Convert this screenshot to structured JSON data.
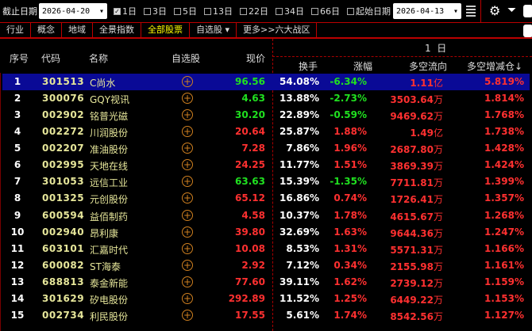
{
  "toolbar": {
    "end_date_label": "截止日期",
    "end_date": "2026-04-20",
    "periods": [
      {
        "label": "1日",
        "checked": true
      },
      {
        "label": "3日",
        "checked": false
      },
      {
        "label": "5日",
        "checked": false
      },
      {
        "label": "13日",
        "checked": false
      },
      {
        "label": "22日",
        "checked": false
      },
      {
        "label": "34日",
        "checked": false
      },
      {
        "label": "66日",
        "checked": false
      },
      {
        "label": "起始日期",
        "checked": false
      }
    ],
    "start_date": "2026-04-13"
  },
  "nav": {
    "items": [
      "行业",
      "概念",
      "地域",
      "全景指数",
      "全部股票",
      "自选股 ▾",
      "更多>>六大战区"
    ],
    "active": 4
  },
  "header": {
    "idx": "序号",
    "code": "代码",
    "name": "名称",
    "watch": "自选股",
    "price": "现价",
    "period": "1  日",
    "turnover": "换手",
    "change": "涨幅",
    "flow": "多空流向",
    "position": "多空增减仓↓"
  },
  "colors": {
    "up": "#ff3030",
    "down": "#20e020",
    "selected_row": "#0a0a96",
    "border": "#b00000"
  },
  "rows": [
    {
      "idx": "1",
      "code": "301513",
      "name": "C尚水",
      "price": "96.56",
      "turnover": "54.08%",
      "change": "-6.34%",
      "flow": "1.11",
      "flow_unit": "亿",
      "position": "5.819%",
      "dir": "green"
    },
    {
      "idx": "2",
      "code": "300076",
      "name": "GQY视讯",
      "price": "4.63",
      "turnover": "13.88%",
      "change": "-2.73%",
      "flow": "3503.64",
      "flow_unit": "万",
      "position": "1.814%",
      "dir": "green"
    },
    {
      "idx": "3",
      "code": "002902",
      "name": "铭普光磁",
      "price": "30.20",
      "turnover": "22.89%",
      "change": "-0.59%",
      "flow": "9469.62",
      "flow_unit": "万",
      "position": "1.768%",
      "dir": "green"
    },
    {
      "idx": "4",
      "code": "002272",
      "name": "川润股份",
      "price": "20.64",
      "turnover": "25.87%",
      "change": "1.88%",
      "flow": "1.49",
      "flow_unit": "亿",
      "position": "1.738%",
      "dir": "red"
    },
    {
      "idx": "5",
      "code": "002207",
      "name": "准油股份",
      "price": "7.28",
      "turnover": "7.86%",
      "change": "1.96%",
      "flow": "2687.80",
      "flow_unit": "万",
      "position": "1.428%",
      "dir": "red"
    },
    {
      "idx": "6",
      "code": "002995",
      "name": "天地在线",
      "price": "24.25",
      "turnover": "11.77%",
      "change": "1.51%",
      "flow": "3869.39",
      "flow_unit": "万",
      "position": "1.424%",
      "dir": "red"
    },
    {
      "idx": "7",
      "code": "301053",
      "name": "远信工业",
      "price": "63.63",
      "turnover": "15.39%",
      "change": "-1.35%",
      "flow": "7711.81",
      "flow_unit": "万",
      "position": "1.399%",
      "dir": "green"
    },
    {
      "idx": "8",
      "code": "001325",
      "name": "元创股份",
      "price": "65.12",
      "turnover": "16.86%",
      "change": "0.74%",
      "flow": "1726.41",
      "flow_unit": "万",
      "position": "1.357%",
      "dir": "red"
    },
    {
      "idx": "9",
      "code": "600594",
      "name": "益佰制药",
      "price": "4.58",
      "turnover": "10.37%",
      "change": "1.78%",
      "flow": "4615.67",
      "flow_unit": "万",
      "position": "1.268%",
      "dir": "red"
    },
    {
      "idx": "10",
      "code": "002940",
      "name": "昂利康",
      "price": "39.80",
      "turnover": "32.69%",
      "change": "1.63%",
      "flow": "9644.36",
      "flow_unit": "万",
      "position": "1.247%",
      "dir": "red"
    },
    {
      "idx": "11",
      "code": "603101",
      "name": "汇嘉时代",
      "price": "10.08",
      "turnover": "8.53%",
      "change": "1.31%",
      "flow": "5571.31",
      "flow_unit": "万",
      "position": "1.166%",
      "dir": "red"
    },
    {
      "idx": "12",
      "code": "600082",
      "name": "ST海泰",
      "price": "2.92",
      "turnover": "7.12%",
      "change": "0.34%",
      "flow": "2155.98",
      "flow_unit": "万",
      "position": "1.161%",
      "dir": "red"
    },
    {
      "idx": "13",
      "code": "688813",
      "name": "泰金新能",
      "price": "77.60",
      "turnover": "39.11%",
      "change": "1.62%",
      "flow": "2739.12",
      "flow_unit": "万",
      "position": "1.159%",
      "dir": "red"
    },
    {
      "idx": "14",
      "code": "301629",
      "name": "矽电股份",
      "price": "292.89",
      "turnover": "11.52%",
      "change": "1.25%",
      "flow": "6449.22",
      "flow_unit": "万",
      "position": "1.153%",
      "dir": "red"
    },
    {
      "idx": "15",
      "code": "002734",
      "name": "利民股份",
      "price": "17.55",
      "turnover": "5.61%",
      "change": "1.74%",
      "flow": "8542.56",
      "flow_unit": "万",
      "position": "1.127%",
      "dir": "red"
    }
  ]
}
